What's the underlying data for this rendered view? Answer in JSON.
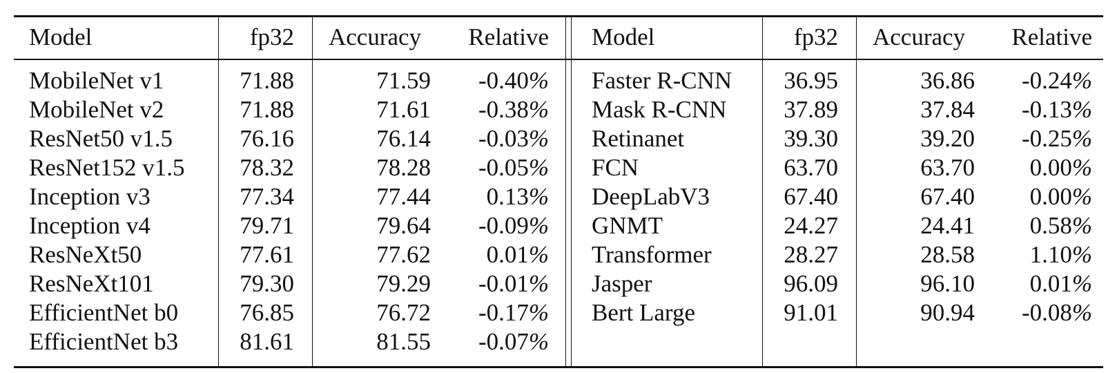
{
  "table": {
    "left": {
      "headers": {
        "model": "Model",
        "fp32": "fp32",
        "accuracy": "Accuracy",
        "relative": "Relative"
      },
      "rows": [
        {
          "model": "MobileNet v1",
          "fp32": "71.88",
          "accuracy": "71.59",
          "relative": "-0.40",
          "pct": "%"
        },
        {
          "model": "MobileNet v2",
          "fp32": "71.88",
          "accuracy": "71.61",
          "relative": "-0.38",
          "pct": "%"
        },
        {
          "model": "ResNet50 v1.5",
          "fp32": "76.16",
          "accuracy": "76.14",
          "relative": "-0.03",
          "pct": "%"
        },
        {
          "model": "ResNet152 v1.5",
          "fp32": "78.32",
          "accuracy": "78.28",
          "relative": "-0.05",
          "pct": "%"
        },
        {
          "model": "Inception v3",
          "fp32": "77.34",
          "accuracy": "77.44",
          "relative": "0.13",
          "pct": "%"
        },
        {
          "model": "Inception v4",
          "fp32": "79.71",
          "accuracy": "79.64",
          "relative": "-0.09",
          "pct": "%"
        },
        {
          "model": "ResNeXt50",
          "fp32": "77.61",
          "accuracy": "77.62",
          "relative": "0.01",
          "pct": "%"
        },
        {
          "model": "ResNeXt101",
          "fp32": "79.30",
          "accuracy": "79.29",
          "relative": "-0.01",
          "pct": "%"
        },
        {
          "model": "EfficientNet b0",
          "fp32": "76.85",
          "accuracy": "76.72",
          "relative": "-0.17",
          "pct": "%"
        },
        {
          "model": "EfficientNet b3",
          "fp32": "81.61",
          "accuracy": "81.55",
          "relative": "-0.07",
          "pct": "%"
        }
      ]
    },
    "right": {
      "headers": {
        "model": "Model",
        "fp32": "fp32",
        "accuracy": "Accuracy",
        "relative": "Relative"
      },
      "rows": [
        {
          "model": "Faster R-CNN",
          "fp32": "36.95",
          "accuracy": "36.86",
          "relative": "-0.24",
          "pct": "%"
        },
        {
          "model": "Mask R-CNN",
          "fp32": "37.89",
          "accuracy": "37.84",
          "relative": "-0.13",
          "pct": "%"
        },
        {
          "model": "Retinanet",
          "fp32": "39.30",
          "accuracy": "39.20",
          "relative": "-0.25",
          "pct": "%"
        },
        {
          "model": "FCN",
          "fp32": "63.70",
          "accuracy": "63.70",
          "relative": "0.00",
          "pct": "%"
        },
        {
          "model": "DeepLabV3",
          "fp32": "67.40",
          "accuracy": "67.40",
          "relative": "0.00",
          "pct": "%"
        },
        {
          "model": "GNMT",
          "fp32": "24.27",
          "accuracy": "24.41",
          "relative": "0.58",
          "pct": "%"
        },
        {
          "model": "Transformer",
          "fp32": "28.27",
          "accuracy": "28.58",
          "relative": "1.10",
          "pct": "%"
        },
        {
          "model": "Jasper",
          "fp32": "96.09",
          "accuracy": "96.10",
          "relative": "0.01",
          "pct": "%"
        },
        {
          "model": "Bert Large",
          "fp32": "91.01",
          "accuracy": "90.94",
          "relative": "-0.08",
          "pct": "%"
        }
      ]
    }
  }
}
